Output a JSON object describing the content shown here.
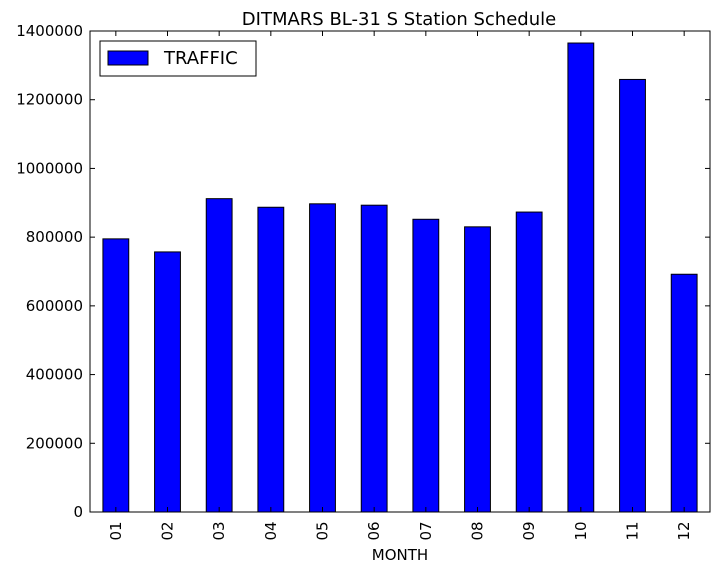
{
  "chart_data": {
    "type": "bar",
    "title": "DITMARS BL-31 S Station Schedule",
    "xlabel": "MONTH",
    "ylabel": "",
    "categories": [
      "01",
      "02",
      "03",
      "04",
      "05",
      "06",
      "07",
      "08",
      "09",
      "10",
      "11",
      "12"
    ],
    "series": [
      {
        "name": "TRAFFIC",
        "color": "#0000ff",
        "values": [
          795000,
          757000,
          912000,
          887000,
          897000,
          893000,
          852000,
          830000,
          873000,
          1365000,
          1259000,
          692000
        ]
      }
    ],
    "ylim": [
      0,
      1400000
    ],
    "yticks": [
      0,
      200000,
      400000,
      600000,
      800000,
      1000000,
      1200000,
      1400000
    ],
    "ytick_labels": [
      "0",
      "200000",
      "400000",
      "600000",
      "800000",
      "1000000",
      "1200000",
      "1400000"
    ],
    "grid": false,
    "legend_position": "top-left"
  }
}
